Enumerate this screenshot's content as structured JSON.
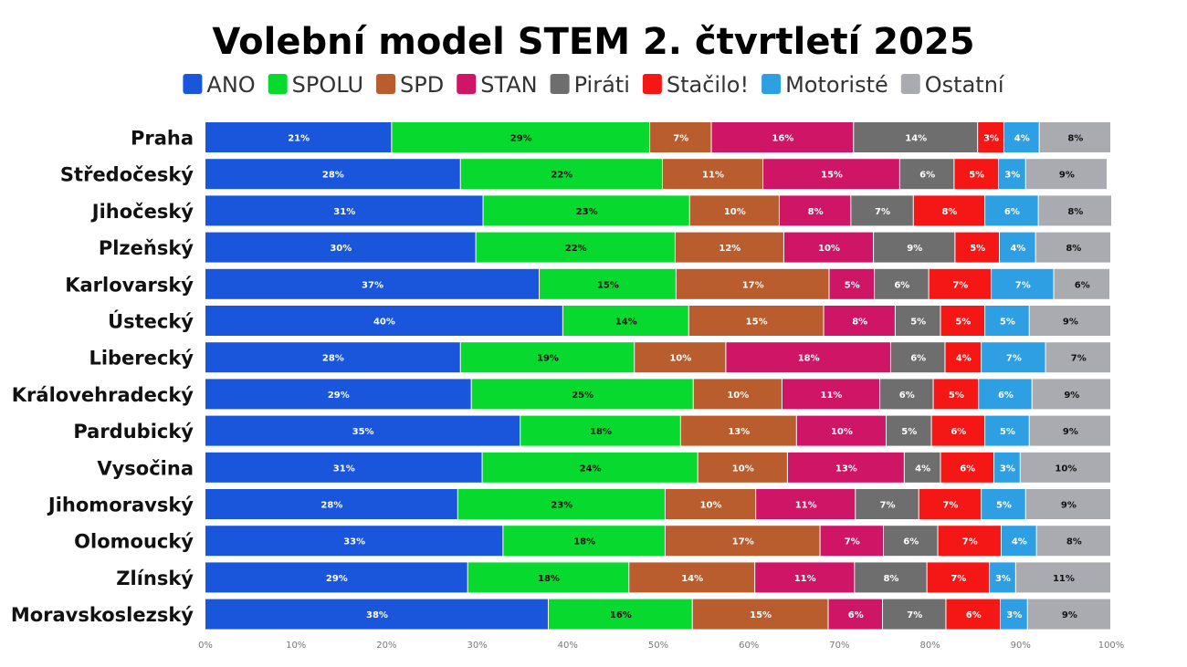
{
  "chart_data": {
    "type": "bar",
    "orientation": "horizontal",
    "stacked": true,
    "title": "Volební model STEM 2. čtvrtletí 2025",
    "xlim": [
      0,
      100
    ],
    "xticks": [
      "0%",
      "10%",
      "20%",
      "30%",
      "40%",
      "50%",
      "60%",
      "70%",
      "80%",
      "90%",
      "100%"
    ],
    "legend_position": "top",
    "grid": false,
    "categories": [
      "Praha",
      "Středočeský",
      "Jihočeský",
      "Plzeňský",
      "Karlovarský",
      "Ústecký",
      "Liberecký",
      "Královehradecký",
      "Pardubický",
      "Vysočina",
      "Jihomoravský",
      "Olomoucký",
      "Zlínský",
      "Moravskoslezský"
    ],
    "series": [
      {
        "name": "ANO",
        "color": "#1a56db",
        "label_color": "#ffffff",
        "values": [
          20.6,
          28.2,
          30.7,
          29.9,
          36.9,
          39.5,
          28.2,
          29.4,
          34.8,
          30.6,
          27.9,
          32.9,
          29.0,
          37.9
        ]
      },
      {
        "name": "SPOLU",
        "color": "#08d92e",
        "label_color": "#111111",
        "values": [
          28.5,
          22.3,
          22.8,
          22.0,
          15.1,
          13.9,
          19.2,
          24.5,
          17.7,
          23.8,
          22.9,
          17.9,
          17.8,
          15.9
        ]
      },
      {
        "name": "SPD",
        "color": "#b95c2e",
        "label_color": "#ffffff",
        "values": [
          6.8,
          11.1,
          9.9,
          12.0,
          16.9,
          14.9,
          10.1,
          9.8,
          12.8,
          9.9,
          10.0,
          17.1,
          13.9,
          15.0
        ]
      },
      {
        "name": "STAN",
        "color": "#cf1566",
        "label_color": "#ffffff",
        "values": [
          15.7,
          15.1,
          7.9,
          9.9,
          5.0,
          7.9,
          18.2,
          10.8,
          9.9,
          12.9,
          11.0,
          7.0,
          11.0,
          6.0
        ]
      },
      {
        "name": "Piráti",
        "color": "#6e6e6e",
        "label_color": "#ffffff",
        "values": [
          13.7,
          6.0,
          6.9,
          9.0,
          6.0,
          5.0,
          6.0,
          5.9,
          5.0,
          4.0,
          7.0,
          6.0,
          8.0,
          7.0
        ]
      },
      {
        "name": "Stačilo!",
        "color": "#f51616",
        "label_color": "#ffffff",
        "values": [
          2.9,
          4.9,
          7.9,
          4.9,
          6.9,
          4.9,
          4.0,
          5.0,
          5.9,
          5.9,
          6.9,
          7.0,
          6.9,
          6.0
        ]
      },
      {
        "name": "Motoristé",
        "color": "#2f9fe4",
        "label_color": "#ffffff",
        "values": [
          3.9,
          3.0,
          5.9,
          4.0,
          6.9,
          4.9,
          7.1,
          5.9,
          4.9,
          2.9,
          4.9,
          3.9,
          2.9,
          3.0
        ]
      },
      {
        "name": "Ostatní",
        "color": "#a9abb0",
        "label_color": "#111111",
        "values": [
          7.9,
          9.0,
          8.1,
          8.3,
          6.2,
          9.0,
          7.2,
          8.7,
          9.0,
          10.0,
          9.4,
          8.2,
          10.5,
          9.2
        ]
      }
    ]
  }
}
